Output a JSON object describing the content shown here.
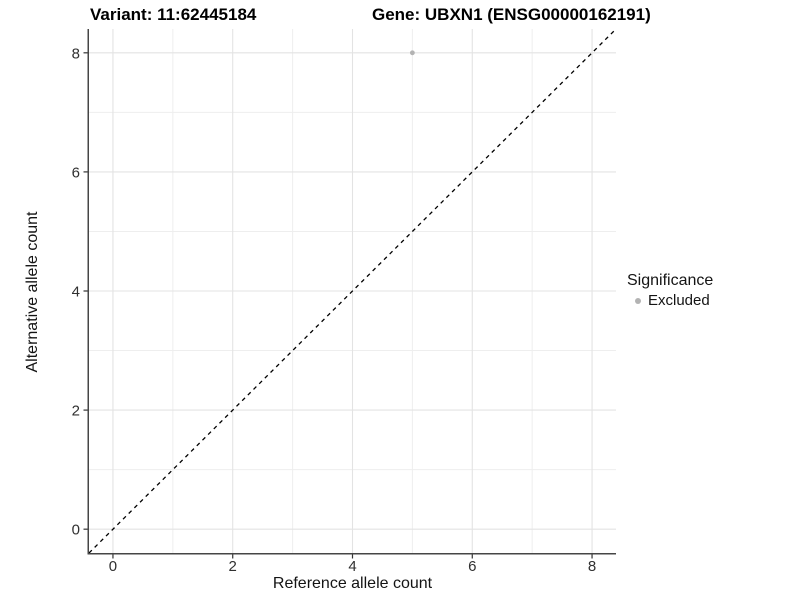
{
  "chart_data": {
    "type": "scatter",
    "title_left": "Variant: 11:62445184",
    "title_right": "Gene: UBXN1 (ENSG00000162191)",
    "axes": {
      "x": {
        "label": "Reference allele count",
        "ticks": [
          0,
          2,
          4,
          6,
          8
        ],
        "minor_ticks": [
          1,
          3,
          5,
          7
        ],
        "range": [
          -0.4,
          8.4
        ]
      },
      "y": {
        "label": "Alternative allele count",
        "ticks": [
          0,
          2,
          4,
          6,
          8
        ],
        "minor_ticks": [
          1,
          3,
          5,
          7
        ],
        "range": [
          -0.4,
          8.4
        ]
      }
    },
    "series": [
      {
        "name": "Excluded",
        "color": "#b3b3b3",
        "points": [
          {
            "x": 5,
            "y": 8
          }
        ]
      }
    ],
    "reference_line": {
      "slope": 1,
      "intercept": 0,
      "linetype": "dashed",
      "color": "#000000"
    },
    "grid": true,
    "legend": {
      "title": "Significance",
      "position": "right",
      "entries": [
        {
          "label": "Excluded",
          "color": "#b3b3b3",
          "marker": "circle"
        }
      ]
    },
    "style": {
      "background": "#ffffff",
      "grid_major_color": "#e3e3e3",
      "grid_minor_color": "#eeeeee",
      "axis_line_color": "#464646",
      "tick_mark_color": "#333333",
      "tick_label_color": "#303030",
      "point_radius": 2.4
    }
  }
}
